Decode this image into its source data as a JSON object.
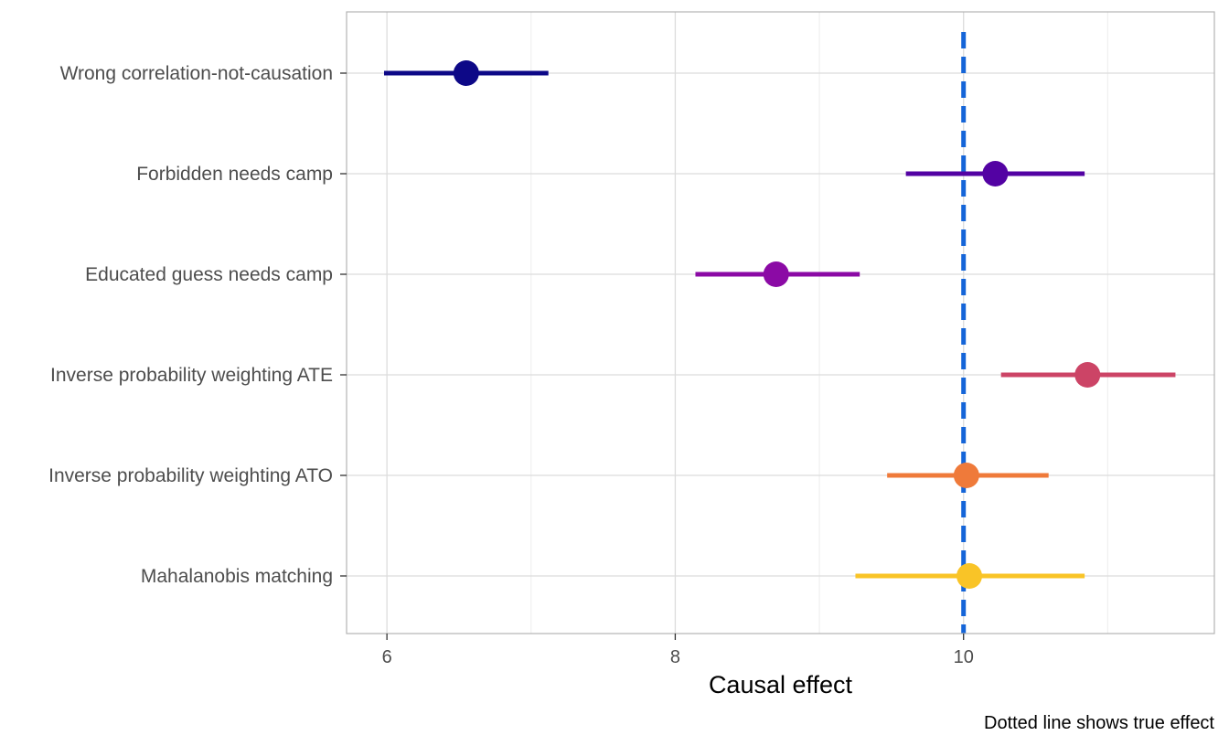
{
  "chart_data": {
    "type": "scatter",
    "title": "",
    "xlabel": "Causal effect",
    "ylabel": "",
    "caption": "Dotted line shows true effect",
    "xlim": [
      5.72,
      11.74
    ],
    "x_ticks": [
      6,
      8,
      10
    ],
    "grid": true,
    "legend": "none",
    "reference_line": {
      "x": 10,
      "style": "dashed",
      "color": "#1565d8"
    },
    "series": [
      {
        "label": "Wrong correlation-not-causation",
        "estimate": 6.55,
        "low": 5.98,
        "high": 7.12,
        "color": "#0d0887"
      },
      {
        "label": "Forbidden needs camp",
        "estimate": 10.22,
        "low": 9.6,
        "high": 10.84,
        "color": "#5302a3"
      },
      {
        "label": "Educated guess needs camp",
        "estimate": 8.7,
        "low": 8.14,
        "high": 9.28,
        "color": "#8b0aa5"
      },
      {
        "label": "Inverse probability weighting ATE",
        "estimate": 10.86,
        "low": 10.26,
        "high": 11.47,
        "color": "#cc4466"
      },
      {
        "label": "Inverse probability weighting ATO",
        "estimate": 10.02,
        "low": 9.47,
        "high": 10.59,
        "color": "#ef7a3a"
      },
      {
        "label": "Mahalanobis matching",
        "estimate": 10.04,
        "low": 9.25,
        "high": 10.84,
        "color": "#f9c427"
      }
    ]
  }
}
